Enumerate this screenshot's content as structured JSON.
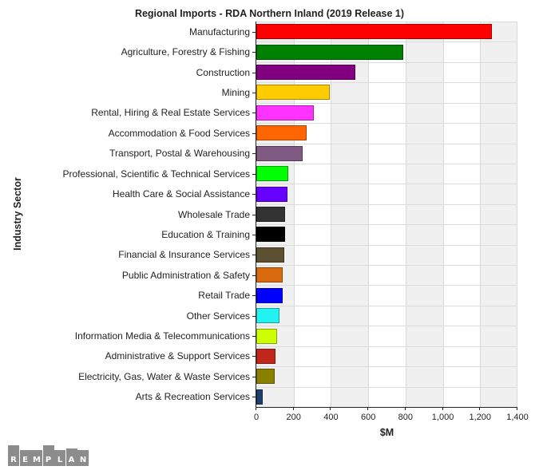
{
  "chart_data": {
    "type": "bar",
    "orientation": "horizontal",
    "title": "Regional Imports - RDA Northern Inland (2019 Release 1)",
    "xlabel": "$M",
    "ylabel": "Industry Sector",
    "xlim": [
      0,
      1400
    ],
    "xticks": [
      0,
      200,
      400,
      600,
      800,
      1000,
      1200,
      1400
    ],
    "xtick_labels": [
      "0",
      "200",
      "400",
      "600",
      "800",
      "1,000",
      "1,200",
      "1,400"
    ],
    "grid": true,
    "legend": null,
    "categories": [
      "Manufacturing",
      "Agriculture, Forestry & Fishing",
      "Construction",
      "Mining",
      "Rental, Hiring & Real Estate Services",
      "Accommodation & Food Services",
      "Transport, Postal & Warehousing",
      "Professional, Scientific & Technical Services",
      "Health Care & Social Assistance",
      "Wholesale Trade",
      "Education & Training",
      "Financial & Insurance Services",
      "Public Administration & Safety",
      "Retail Trade",
      "Other Services",
      "Information Media & Telecommunications",
      "Administrative & Support Services",
      "Electricity, Gas, Water & Waste Services",
      "Arts & Recreation Services"
    ],
    "values": [
      1262,
      786,
      533,
      396,
      308,
      271,
      249,
      172,
      168,
      155,
      153,
      149,
      143,
      141,
      125,
      112,
      104,
      99,
      34
    ],
    "colors": [
      "#ff0000",
      "#008000",
      "#800080",
      "#ffcc00",
      "#ff33ff",
      "#ff6600",
      "#7f5a83",
      "#00ff00",
      "#6600ff",
      "#333333",
      "#000000",
      "#5c5033",
      "#d96a0d",
      "#0000ff",
      "#22f2f2",
      "#ccff00",
      "#c0271a",
      "#8a8000",
      "#1f3f6e"
    ]
  },
  "branding": {
    "logo_text": "REMPLAN",
    "logo_letters": [
      "R",
      "E",
      "M",
      "P",
      "L",
      "A",
      "N"
    ]
  }
}
